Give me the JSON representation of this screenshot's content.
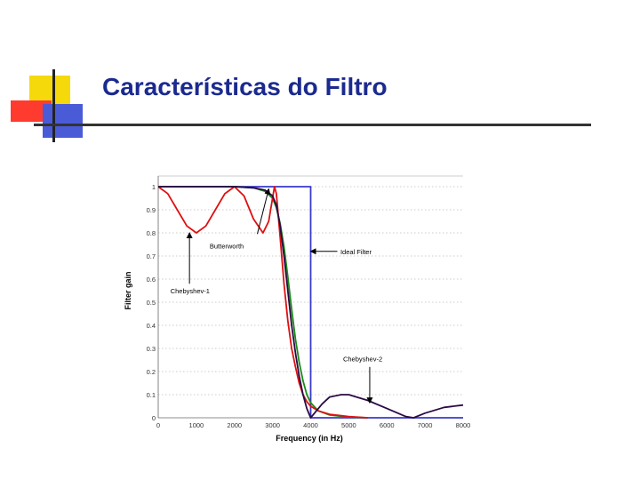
{
  "slide": {
    "title": "Características do Filtro"
  },
  "chart_data": {
    "type": "line",
    "title": "",
    "xlabel": "Frequency (in Hz)",
    "ylabel": "Filter gain",
    "xlim": [
      0,
      8000
    ],
    "ylim": [
      0,
      1
    ],
    "xticks": [
      0,
      1000,
      2000,
      3000,
      4000,
      5000,
      6000,
      7000,
      8000
    ],
    "xtick_labels": [
      "0",
      "1000",
      "2000",
      "3000",
      "4000",
      "5000",
      "6000",
      "7000",
      "8000"
    ],
    "yticks": [
      0,
      0.1,
      0.2,
      0.3,
      0.4,
      0.5,
      0.6,
      0.7,
      0.8,
      0.9,
      1
    ],
    "ytick_labels": [
      "0",
      "0.1",
      "0.2",
      "0.3",
      "0.4",
      "0.5",
      "0.6",
      "0.7",
      "0.8",
      "0.9",
      "1"
    ],
    "grid": "horizontal dotted",
    "series": [
      {
        "name": "Ideal Filter",
        "color": "#3a3acc",
        "x": [
          0,
          4000,
          4000,
          8000
        ],
        "y": [
          1,
          1,
          0,
          0
        ]
      },
      {
        "name": "Butterworth",
        "color": "#1a8a1a",
        "x": [
          0,
          1000,
          2000,
          2500,
          2800,
          3000,
          3100,
          3200,
          3300,
          3400,
          3500,
          3600,
          3700,
          3800,
          3900,
          4000,
          4200,
          4500,
          5000,
          5500
        ],
        "y": [
          1,
          1,
          1,
          0.995,
          0.98,
          0.95,
          0.91,
          0.84,
          0.74,
          0.61,
          0.47,
          0.34,
          0.24,
          0.16,
          0.1,
          0.065,
          0.03,
          0.012,
          0.003,
          0
        ]
      },
      {
        "name": "Chebyshev-1",
        "color": "#dd1111",
        "x": [
          0,
          250,
          500,
          750,
          1000,
          1250,
          1500,
          1750,
          2000,
          2250,
          2500,
          2750,
          2900,
          3000,
          3050,
          3100,
          3200,
          3300,
          3400,
          3500,
          3600,
          3700,
          3800,
          3900,
          4000,
          4200,
          4500,
          5000,
          5500
        ],
        "y": [
          1,
          0.97,
          0.9,
          0.83,
          0.8,
          0.83,
          0.9,
          0.97,
          1,
          0.96,
          0.86,
          0.8,
          0.85,
          0.95,
          1,
          0.97,
          0.78,
          0.58,
          0.42,
          0.3,
          0.22,
          0.15,
          0.1,
          0.07,
          0.05,
          0.03,
          0.015,
          0.005,
          0
        ]
      },
      {
        "name": "Chebyshev-2",
        "color": "#2b0a45",
        "x": [
          0,
          2000,
          2500,
          2800,
          3000,
          3100,
          3200,
          3300,
          3400,
          3500,
          3600,
          3700,
          3800,
          3900,
          4000,
          4100,
          4300,
          4500,
          4800,
          5000,
          5200,
          5500,
          6000,
          6500,
          6700,
          7000,
          7500,
          8000
        ],
        "y": [
          1,
          1,
          0.995,
          0.985,
          0.96,
          0.92,
          0.83,
          0.7,
          0.55,
          0.4,
          0.28,
          0.18,
          0.1,
          0.04,
          0,
          0.02,
          0.06,
          0.09,
          0.1,
          0.1,
          0.09,
          0.075,
          0.04,
          0.005,
          0,
          0.02,
          0.045,
          0.055
        ]
      }
    ],
    "annotations": [
      {
        "text": "Butterworth",
        "tip": [
          2900,
          0.99
        ],
        "tail": [
          2600,
          0.795
        ],
        "label_at": [
          1350,
          0.745
        ]
      },
      {
        "text": "Ideal Filter",
        "tip": [
          4000,
          0.72
        ],
        "tail": [
          4700,
          0.72
        ],
        "label_at": [
          4780,
          0.72
        ]
      },
      {
        "text": "Chebyshev-1",
        "tip": [
          820,
          0.8
        ],
        "tail": [
          820,
          0.58
        ],
        "label_at": [
          320,
          0.55
        ]
      },
      {
        "text": "Chebyshev-2",
        "tip": [
          5550,
          0.065
        ],
        "tail": [
          5550,
          0.22
        ],
        "label_at": [
          4850,
          0.255
        ]
      }
    ]
  }
}
